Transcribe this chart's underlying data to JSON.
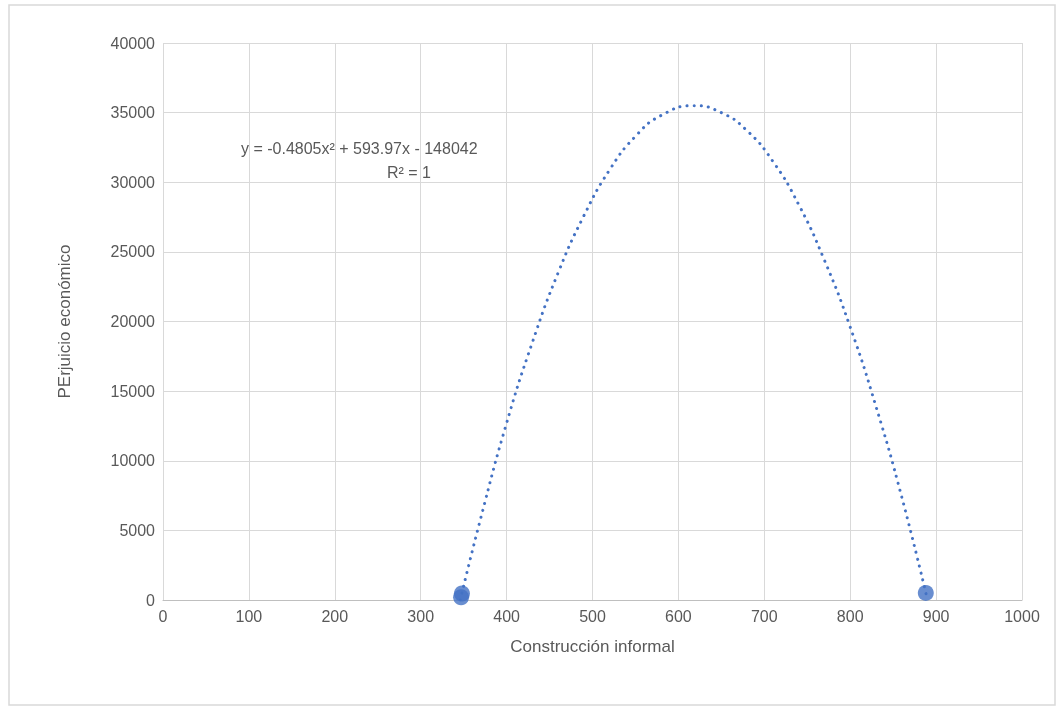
{
  "chart_data": {
    "type": "scatter",
    "xlabel": "Construcción informal",
    "ylabel": "PErjuicio económico",
    "xlim": [
      0,
      1000
    ],
    "xticks": [
      0,
      100,
      200,
      300,
      400,
      500,
      600,
      700,
      800,
      900,
      1000
    ],
    "ylim": [
      0,
      40000
    ],
    "yticks": [
      0,
      5000,
      10000,
      15000,
      20000,
      25000,
      30000,
      35000,
      40000
    ],
    "grid": true,
    "marker": "circle",
    "annotations": [
      "y = -0.4805x² + 593.97x - 148042",
      "R² = 1"
    ],
    "series": [
      {
        "color": "#4472c4",
        "x": [
          347,
          348,
          888
        ],
        "values": [
          200,
          470,
          510
        ]
      },
      {
        "type": "line",
        "color": "#4472c4",
        "line_style": "dotted",
        "marker": "none",
        "x": [
          346,
          370,
          400,
          430,
          460,
          490,
          520,
          550,
          580,
          618,
          650,
          680,
          710,
          740,
          770,
          800,
          830,
          860,
          890
        ],
        "values": [
          0,
          5900,
          12700,
          18500,
          23500,
          27600,
          30900,
          33300,
          34800,
          35500,
          35000,
          33700,
          31500,
          28400,
          24400,
          19600,
          13900,
          7400,
          0
        ]
      }
    ]
  }
}
